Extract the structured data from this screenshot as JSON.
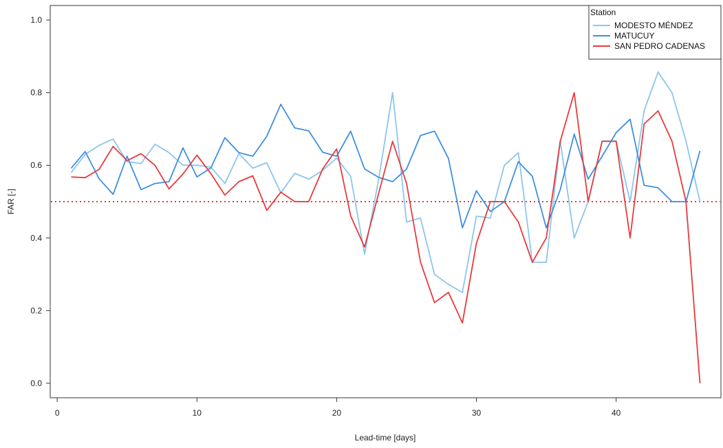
{
  "chart_data": {
    "type": "line",
    "xlabel": "Lead-time [days]",
    "ylabel": "FAR [-]",
    "xlim": [
      -0.5,
      47.5
    ],
    "ylim": [
      -0.04,
      1.04
    ],
    "xticks": [
      0,
      10,
      20,
      30,
      40
    ],
    "yticks": [
      0.0,
      0.2,
      0.4,
      0.6,
      0.8,
      1.0
    ],
    "xtick_labels": [
      "0",
      "10",
      "20",
      "30",
      "40"
    ],
    "ytick_labels": [
      "0.0",
      "0.2",
      "0.4",
      "0.6",
      "0.8",
      "1.0"
    ],
    "grid": false,
    "legend": {
      "title": "Station",
      "position": "top-right"
    },
    "reference_line": {
      "y": 0.5,
      "style": "dotted",
      "color": "#e8393b"
    },
    "x": [
      1,
      2,
      3,
      4,
      5,
      6,
      7,
      8,
      9,
      10,
      11,
      12,
      13,
      14,
      15,
      16,
      17,
      18,
      19,
      20,
      21,
      22,
      23,
      24,
      25,
      26,
      27,
      28,
      29,
      30,
      31,
      32,
      33,
      34,
      35,
      36,
      37,
      38,
      39,
      40,
      41,
      42,
      43,
      44,
      45,
      46
    ],
    "series": [
      {
        "name": "MODESTO MÉNDEZ",
        "color": "#8cc5ee",
        "values": [
          0.58,
          0.63,
          0.655,
          0.672,
          0.61,
          0.605,
          0.658,
          0.635,
          0.6,
          0.6,
          0.595,
          0.55,
          0.632,
          0.592,
          0.607,
          0.524,
          0.578,
          0.562,
          0.586,
          0.62,
          0.57,
          0.355,
          0.56,
          0.8,
          0.444,
          0.455,
          0.3,
          0.272,
          0.25,
          0.46,
          0.455,
          0.6,
          0.635,
          0.333,
          0.333,
          0.667,
          0.4,
          0.5,
          0.667,
          0.667,
          0.5,
          0.75,
          0.857,
          0.8,
          0.667,
          0.5
        ]
      },
      {
        "name": "MATUCUY",
        "color": "#3d8fe0",
        "values": [
          0.592,
          0.638,
          0.563,
          0.52,
          0.625,
          0.533,
          0.55,
          0.555,
          0.648,
          0.568,
          0.593,
          0.676,
          0.635,
          0.625,
          0.68,
          0.768,
          0.703,
          0.695,
          0.636,
          0.625,
          0.694,
          0.59,
          0.567,
          0.555,
          0.59,
          0.682,
          0.694,
          0.619,
          0.428,
          0.53,
          0.473,
          0.5,
          0.61,
          0.57,
          0.428,
          0.533,
          0.686,
          0.562,
          0.625,
          0.69,
          0.727,
          0.545,
          0.538,
          0.5,
          0.5,
          0.64
        ]
      },
      {
        "name": "SAN PEDRO CADENAS",
        "color": "#e8393b",
        "values": [
          0.568,
          0.566,
          0.589,
          0.652,
          0.613,
          0.632,
          0.6,
          0.535,
          0.576,
          0.628,
          0.577,
          0.518,
          0.555,
          0.571,
          0.476,
          0.526,
          0.5,
          0.5,
          0.59,
          0.645,
          0.461,
          0.375,
          0.522,
          0.666,
          0.55,
          0.333,
          0.222,
          0.25,
          0.166,
          0.385,
          0.5,
          0.5,
          0.444,
          0.333,
          0.4,
          0.666,
          0.8,
          0.5,
          0.666,
          0.666,
          0.4,
          0.714,
          0.75,
          0.666,
          0.5,
          0.0
        ]
      }
    ]
  }
}
